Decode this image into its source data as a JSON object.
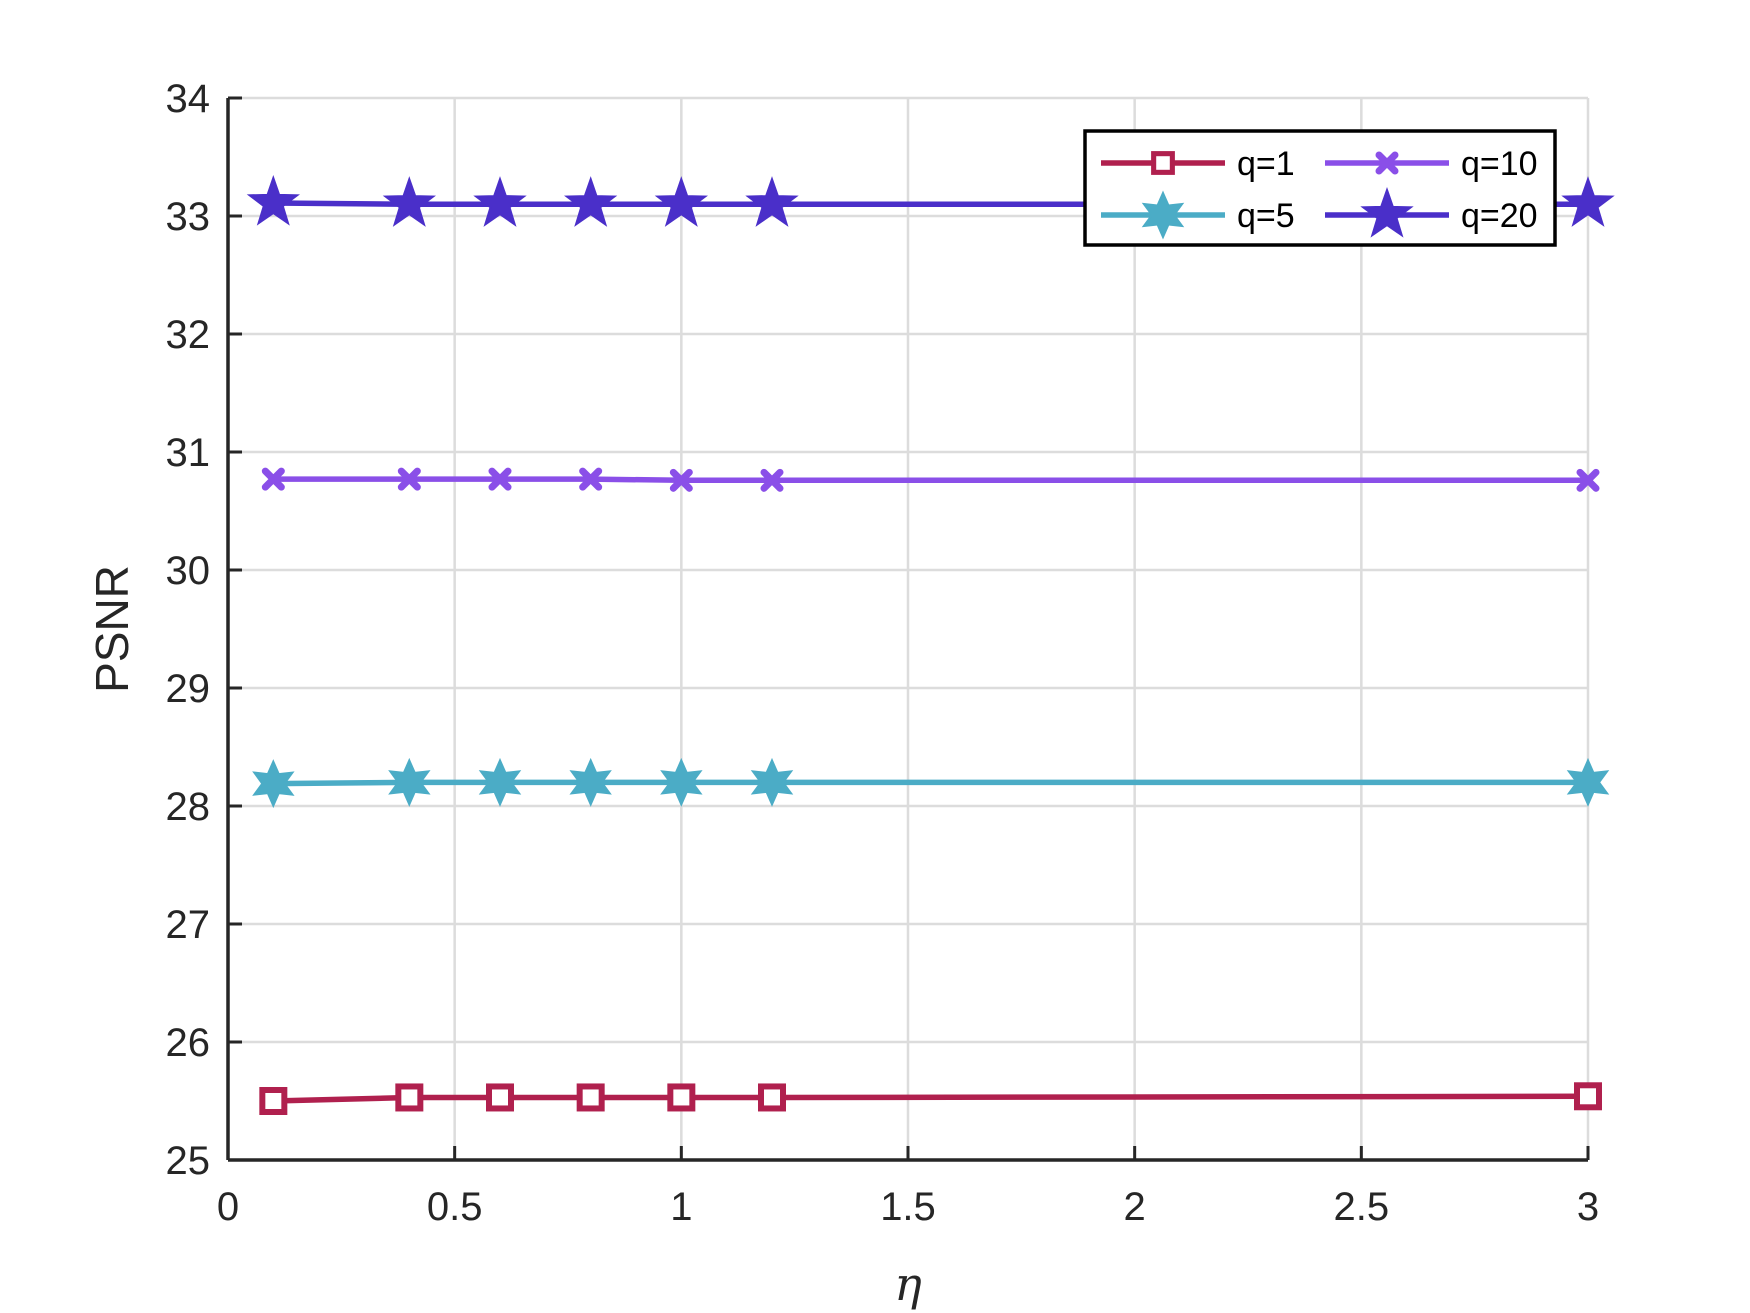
{
  "chart_data": {
    "type": "line",
    "title": "",
    "xlabel": "η",
    "ylabel": "PSNR",
    "xlim": [
      0,
      3
    ],
    "ylim": [
      25,
      34
    ],
    "xticks": [
      0,
      0.5,
      1,
      1.5,
      2,
      2.5,
      3
    ],
    "yticks": [
      25,
      26,
      27,
      28,
      29,
      30,
      31,
      32,
      33,
      34
    ],
    "xtick_labels": [
      "0",
      "0.5",
      "1",
      "1.5",
      "2",
      "2.5",
      "3"
    ],
    "ytick_labels": [
      "25",
      "26",
      "27",
      "28",
      "29",
      "30",
      "31",
      "32",
      "33",
      "34"
    ],
    "grid": true,
    "legend_position": "top-right",
    "x": [
      0.1,
      0.4,
      0.6,
      0.8,
      1.0,
      1.2,
      3.0
    ],
    "series": [
      {
        "name": "q=1",
        "color": "#B0204E",
        "marker": "square",
        "values": [
          25.5,
          25.53,
          25.53,
          25.53,
          25.53,
          25.53,
          25.54
        ]
      },
      {
        "name": "q=5",
        "color": "#4BACC6",
        "marker": "hexagram",
        "values": [
          28.19,
          28.2,
          28.2,
          28.2,
          28.2,
          28.2,
          28.2
        ]
      },
      {
        "name": "q=10",
        "color": "#8A4FE8",
        "marker": "x",
        "values": [
          30.77,
          30.77,
          30.77,
          30.77,
          30.76,
          30.76,
          30.76
        ]
      },
      {
        "name": "q=20",
        "color": "#4A2FC9",
        "marker": "pentagram",
        "values": [
          33.11,
          33.1,
          33.1,
          33.1,
          33.1,
          33.1,
          33.1
        ]
      }
    ]
  }
}
